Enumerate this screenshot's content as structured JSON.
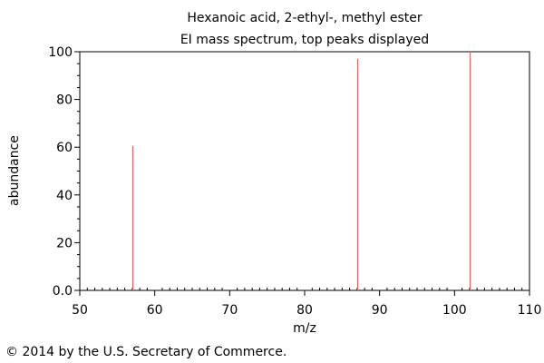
{
  "chart_data": {
    "type": "bar",
    "title": "Hexanoic acid, 2-ethyl-, methyl ester",
    "subtitle": "EI mass spectrum, top peaks displayed",
    "xlabel": "m/z",
    "ylabel": "abundance",
    "xlim": [
      50,
      110
    ],
    "ylim": [
      0,
      100
    ],
    "x_ticks": [
      "50",
      "60",
      "70",
      "80",
      "90",
      "100",
      "110"
    ],
    "y_ticks": [
      "0.0",
      "20",
      "40",
      "60",
      "80",
      "100"
    ],
    "x_tick_values": [
      50,
      60,
      70,
      80,
      90,
      100,
      110
    ],
    "y_tick_values": [
      0,
      20,
      40,
      60,
      80,
      100
    ],
    "grid": false,
    "peaks": [
      {
        "x": 57,
        "y": 60.5
      },
      {
        "x": 87,
        "y": 97
      },
      {
        "x": 102,
        "y": 100
      }
    ],
    "peak_color": "#e06666"
  },
  "footer": {
    "copyright": "© 2014 by the U.S. Secretary of Commerce."
  }
}
